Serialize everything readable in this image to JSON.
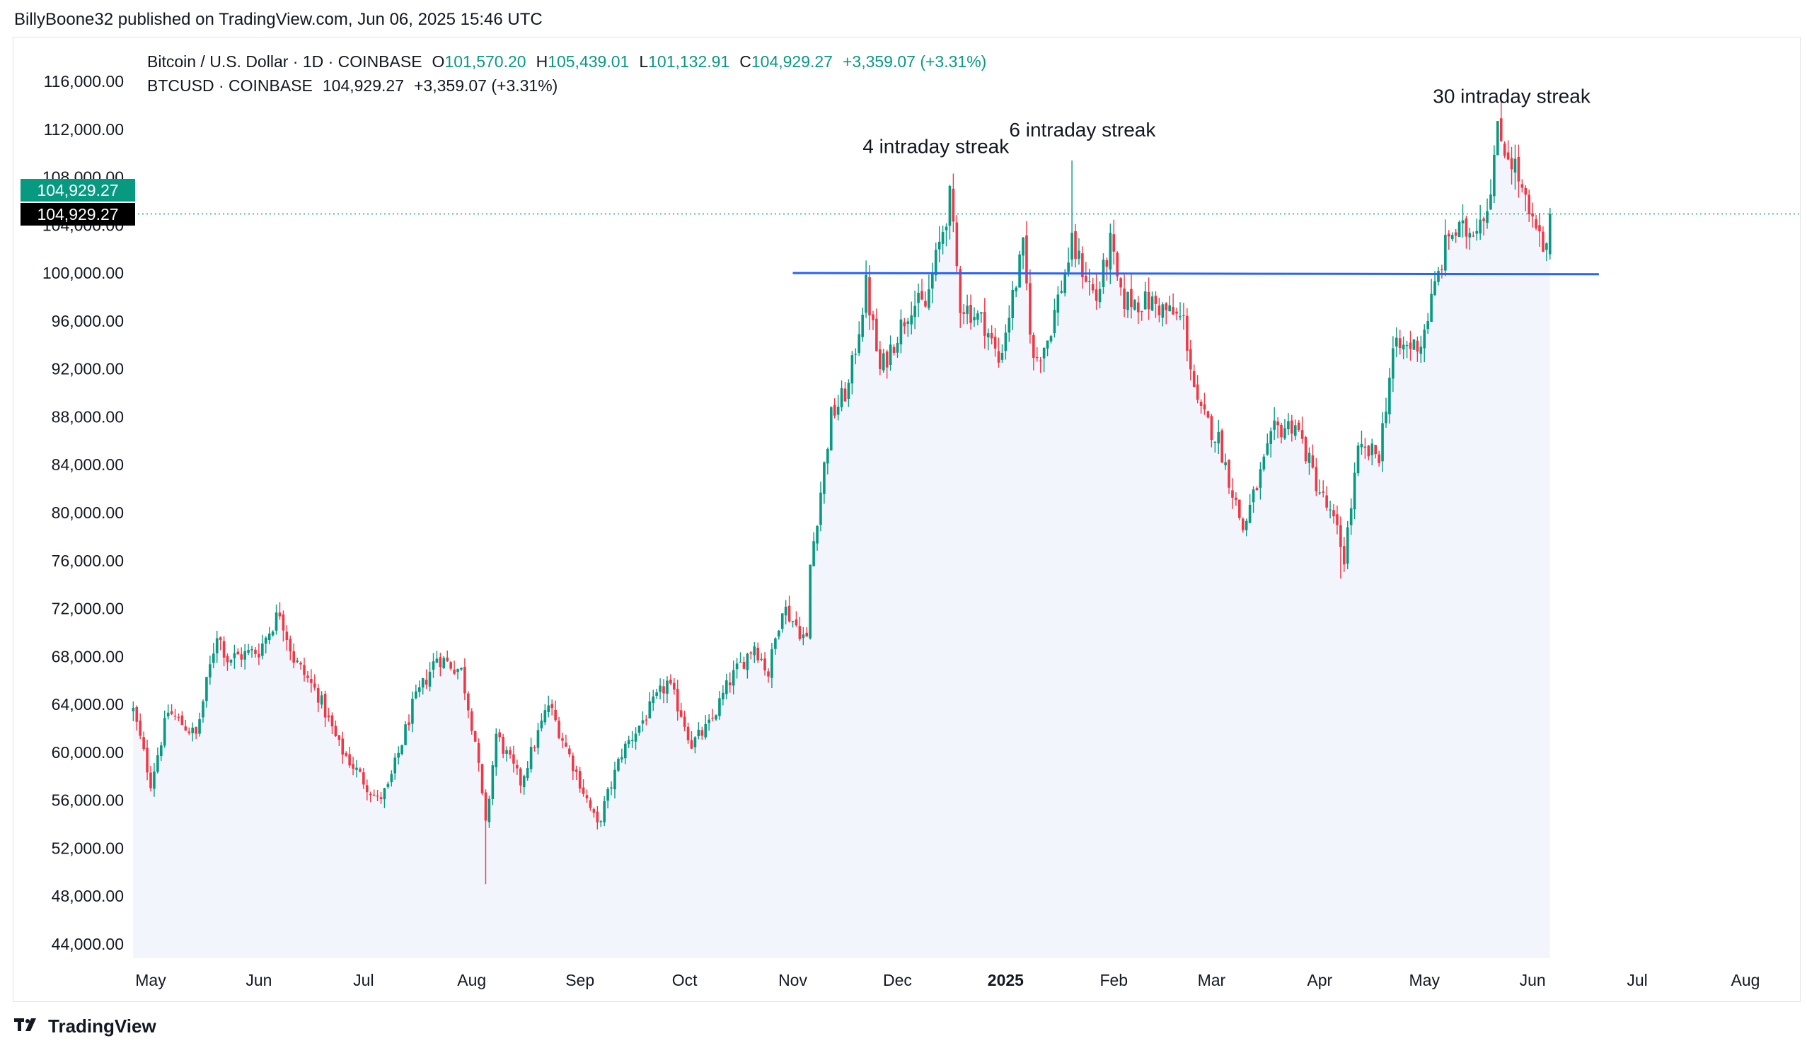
{
  "header": {
    "publisher": "BillyBoone32 published on TradingView.com, Jun 06, 2025 15:46 UTC"
  },
  "legend": {
    "line1_symbol": "Bitcoin / U.S. Dollar · 1D · COINBASE",
    "o_label": "O",
    "o_value": "101,570.20",
    "h_label": "H",
    "h_value": "105,439.01",
    "l_label": "L",
    "l_value": "101,132.91",
    "c_label": "C",
    "c_value": "104,929.27",
    "change": "+3,359.07 (+3.31%)",
    "line2_symbol": "BTCUSD · COINBASE",
    "line2_price": "104,929.27",
    "line2_change": "+3,359.07 (+3.31%)"
  },
  "branding": {
    "name": "TradingView",
    "icon": "tradingview-logo-icon"
  },
  "colors": {
    "up": "#089981",
    "down": "#f23645",
    "level_line": "#2962ff",
    "area_fill": "#f3f5fd",
    "price_tag_green": "#089981",
    "price_tag_black": "#000000"
  },
  "chart_data": {
    "type": "candlestick",
    "symbol": "BTCUSD",
    "timeframe": "1D",
    "exchange": "COINBASE",
    "y_ticks": [
      "116,000.00",
      "112,000.00",
      "108,000.00",
      "104,000.00",
      "100,000.00",
      "96,000.00",
      "92,000.00",
      "88,000.00",
      "84,000.00",
      "80,000.00",
      "76,000.00",
      "72,000.00",
      "68,000.00",
      "64,000.00",
      "60,000.00",
      "56,000.00",
      "52,000.00",
      "48,000.00",
      "44,000.00"
    ],
    "ylim": [
      41000,
      118500
    ],
    "x_ticks": [
      {
        "label": "May",
        "date": "2024-05-01",
        "bold": false
      },
      {
        "label": "Jun",
        "date": "2024-06-01",
        "bold": false
      },
      {
        "label": "Jul",
        "date": "2024-07-01",
        "bold": false
      },
      {
        "label": "Aug",
        "date": "2024-08-01",
        "bold": false
      },
      {
        "label": "Sep",
        "date": "2024-09-01",
        "bold": false
      },
      {
        "label": "Oct",
        "date": "2024-10-01",
        "bold": false
      },
      {
        "label": "Nov",
        "date": "2024-11-01",
        "bold": false
      },
      {
        "label": "Dec",
        "date": "2024-12-01",
        "bold": false
      },
      {
        "label": "2025",
        "date": "2025-01-01",
        "bold": true
      },
      {
        "label": "Feb",
        "date": "2025-02-01",
        "bold": false
      },
      {
        "label": "Mar",
        "date": "2025-03-01",
        "bold": false
      },
      {
        "label": "Apr",
        "date": "2025-04-01",
        "bold": false
      },
      {
        "label": "May",
        "date": "2025-05-01",
        "bold": false
      },
      {
        "label": "Jun",
        "date": "2025-06-01",
        "bold": false
      },
      {
        "label": "Jul",
        "date": "2025-07-01",
        "bold": false
      },
      {
        "label": "Aug",
        "date": "2025-08-01",
        "bold": false
      }
    ],
    "close_path": [
      [
        "2024-04-26",
        63500
      ],
      [
        "2024-05-01",
        57500
      ],
      [
        "2024-05-06",
        63400
      ],
      [
        "2024-05-14",
        61400
      ],
      [
        "2024-05-20",
        70000
      ],
      [
        "2024-05-23",
        67800
      ],
      [
        "2024-06-01",
        68500
      ],
      [
        "2024-06-07",
        71800
      ],
      [
        "2024-06-11",
        67800
      ],
      [
        "2024-06-18",
        64800
      ],
      [
        "2024-06-24",
        60500
      ],
      [
        "2024-07-05",
        56000
      ],
      [
        "2024-07-08",
        57000
      ],
      [
        "2024-07-15",
        63800
      ],
      [
        "2024-07-22",
        68000
      ],
      [
        "2024-07-29",
        66800
      ],
      [
        "2024-08-02",
        61000
      ],
      [
        "2024-08-05",
        53800
      ],
      [
        "2024-08-08",
        61500
      ],
      [
        "2024-08-15",
        57500
      ],
      [
        "2024-08-23",
        64000
      ],
      [
        "2024-08-30",
        59000
      ],
      [
        "2024-09-06",
        53800
      ],
      [
        "2024-09-13",
        60000
      ],
      [
        "2024-09-26",
        65800
      ],
      [
        "2024-09-30",
        63300
      ],
      [
        "2024-10-03",
        60700
      ],
      [
        "2024-10-08",
        62200
      ],
      [
        "2024-10-14",
        66000
      ],
      [
        "2024-10-21",
        69000
      ],
      [
        "2024-10-25",
        66600
      ],
      [
        "2024-10-29",
        72300
      ],
      [
        "2024-11-05",
        69300
      ],
      [
        "2024-11-06",
        75600
      ],
      [
        "2024-11-12",
        88000
      ],
      [
        "2024-11-17",
        90500
      ],
      [
        "2024-11-22",
        98900
      ],
      [
        "2024-11-26",
        91800
      ],
      [
        "2024-12-05",
        97500
      ],
      [
        "2024-12-09",
        97200
      ],
      [
        "2024-12-16",
        106200
      ],
      [
        "2024-12-19",
        97500
      ],
      [
        "2024-12-26",
        95800
      ],
      [
        "2024-12-30",
        92600
      ],
      [
        "2025-01-06",
        102000
      ],
      [
        "2025-01-09",
        92500
      ],
      [
        "2025-01-13",
        94500
      ],
      [
        "2025-01-20",
        102300
      ],
      [
        "2025-01-27",
        97800
      ],
      [
        "2025-01-31",
        102400
      ],
      [
        "2025-02-03",
        97800
      ],
      [
        "2025-02-12",
        97500
      ],
      [
        "2025-02-21",
        96000
      ],
      [
        "2025-02-25",
        88700
      ],
      [
        "2025-03-03",
        86100
      ],
      [
        "2025-03-10",
        78600
      ],
      [
        "2025-03-19",
        86800
      ],
      [
        "2025-03-25",
        87500
      ],
      [
        "2025-03-31",
        82500
      ],
      [
        "2025-04-06",
        78400
      ],
      [
        "2025-04-08",
        76300
      ],
      [
        "2025-04-12",
        85000
      ],
      [
        "2025-04-18",
        84900
      ],
      [
        "2025-04-22",
        93500
      ],
      [
        "2025-04-30",
        94200
      ],
      [
        "2025-05-08",
        103300
      ],
      [
        "2025-05-14",
        103500
      ],
      [
        "2025-05-19",
        105600
      ],
      [
        "2025-05-22",
        111700
      ],
      [
        "2025-05-27",
        108900
      ],
      [
        "2025-05-31",
        104600
      ],
      [
        "2025-06-05",
        101500
      ],
      [
        "2025-06-06",
        104929
      ]
    ],
    "level_line": {
      "value": 100000,
      "start": "2024-11-01",
      "end": "2025-06-20",
      "approx_end_value": 99900
    },
    "current_price": {
      "value": 104929.27,
      "label": "104,929.27"
    },
    "annotations": [
      {
        "text": "4 intraday streak",
        "date": "2024-12-12",
        "value": 110000
      },
      {
        "text": "6 intraday streak",
        "date": "2025-01-23",
        "value": 111400
      },
      {
        "text": "30 intraday streak",
        "date": "2025-05-26",
        "value": 114200
      }
    ],
    "highlight_wicks": [
      {
        "date": "2024-08-05",
        "low": 49000
      },
      {
        "date": "2024-12-17",
        "high": 108300
      },
      {
        "date": "2025-01-20",
        "high": 109400
      },
      {
        "date": "2025-05-22",
        "high": 111900
      },
      {
        "date": "2025-04-07",
        "low": 74500
      }
    ],
    "grid": false,
    "legend_position": "top-left"
  }
}
